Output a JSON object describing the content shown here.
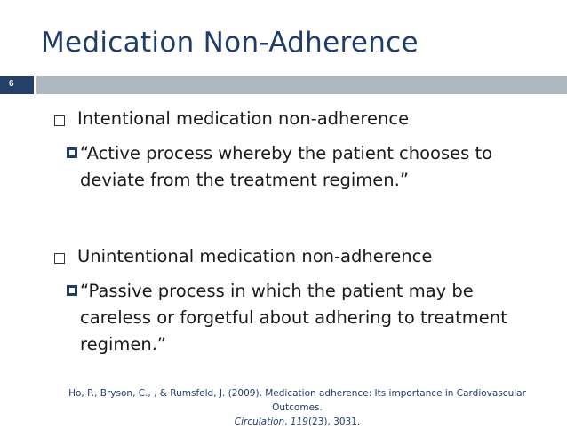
{
  "slide": {
    "title": "Medication Non-Adherence",
    "number": "6"
  },
  "bullets": [
    {
      "heading": "Intentional medication non-adherence",
      "sub": "“Active process whereby the patient chooses to deviate from the treatment regimen.”"
    },
    {
      "heading": "Unintentional medication non-adherence",
      "sub": "“Passive process in which the patient may be careless or forgetful about adhering to treatment regimen.”"
    }
  ],
  "citation": {
    "authors": "Ho, P., Bryson, C., , & Rumsfeld, J. (2009). Medication adherence: Its importance in Cardiovascular Outcomes.",
    "journal": "Circulation",
    "volume": "119",
    "issue_pages": "(23), 3031."
  }
}
